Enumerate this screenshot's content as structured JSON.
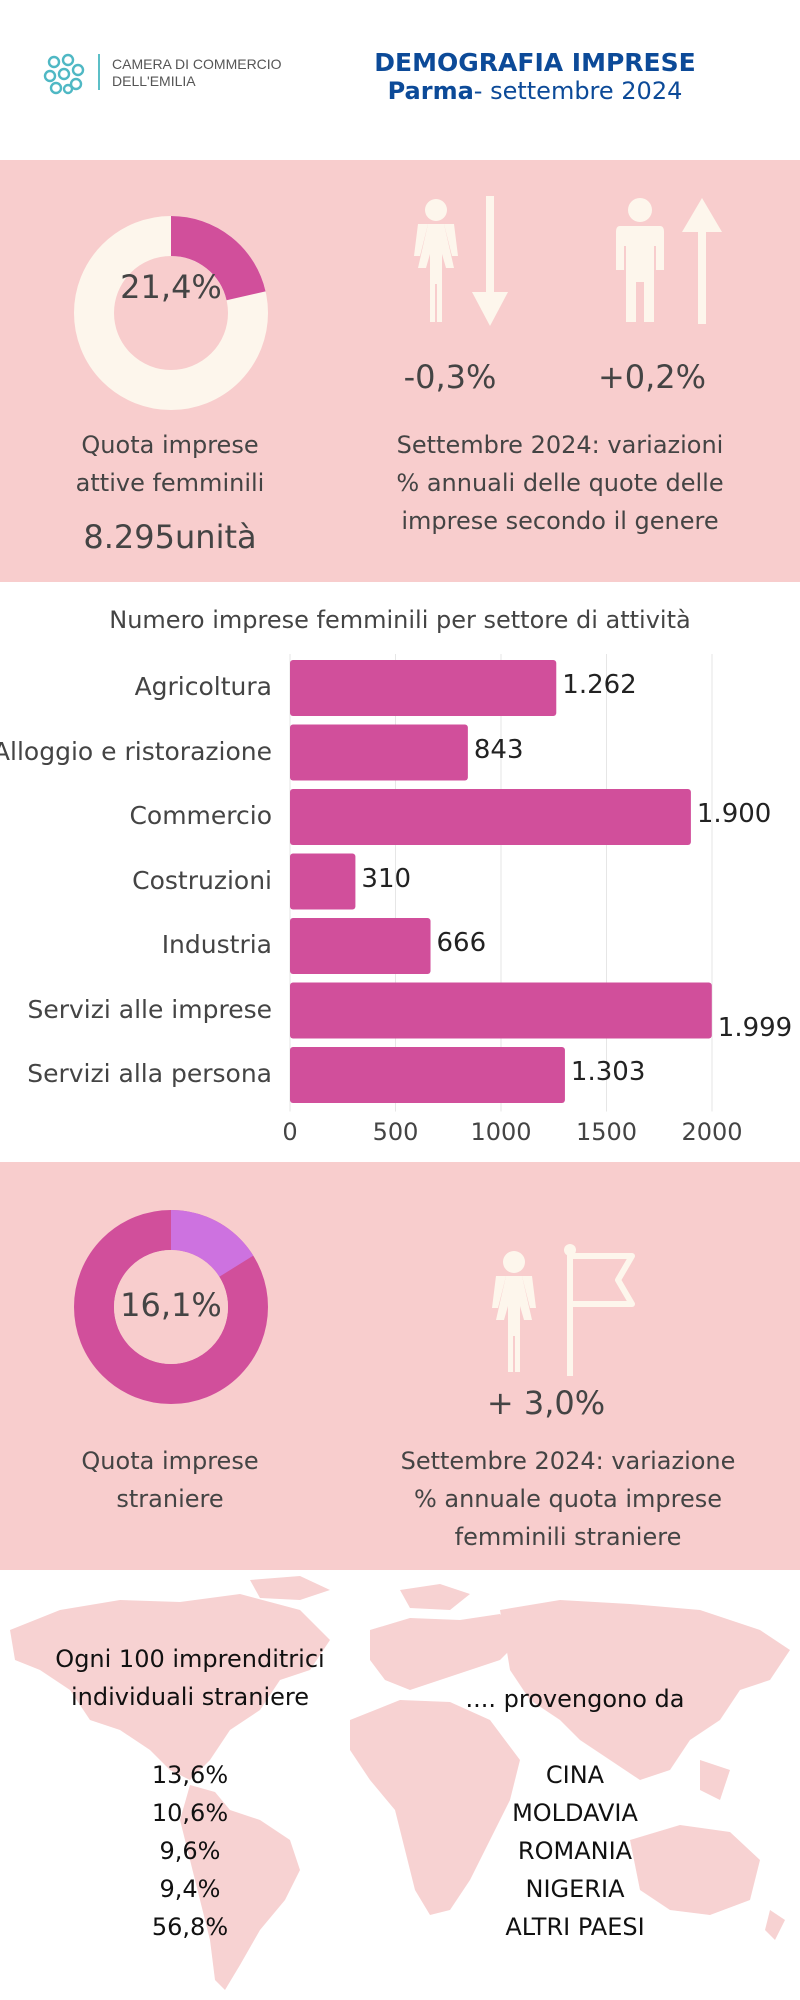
{
  "header": {
    "org_line1": "CAMERA DI COMMERCIO",
    "org_line2": "DELL'EMILIA",
    "title": "DEMOGRAFIA IMPRESE",
    "subtitle_bold": "Parma",
    "subtitle_rest": "- settembre 2024"
  },
  "female_share": {
    "value_label": "21,4%",
    "value": 21.4,
    "caption_line1": "Quota imprese",
    "caption_line2": "attive femminili",
    "units": "8.295unità"
  },
  "gender_variation": {
    "female_label": "-0,3%",
    "male_label": "+0,2%",
    "caption_line1": "Settembre 2024: variazioni",
    "caption_line2": "% annuali delle quote delle",
    "caption_line3": "imprese secondo il genere"
  },
  "chart_data": {
    "type": "bar",
    "orientation": "horizontal",
    "title": "Numero imprese femminili per settore di attività",
    "categories": [
      "Agricoltura",
      "Alloggio e ristorazione",
      "Commercio",
      "Costruzioni",
      "Industria",
      "Servizi alle imprese",
      "Servizi alla persona"
    ],
    "values": [
      1262,
      843,
      1900,
      310,
      666,
      1999,
      1303
    ],
    "value_labels": [
      "1.262",
      "843",
      "1.900",
      "310",
      "666",
      "1.999",
      "1.303"
    ],
    "xlim": [
      0,
      2000
    ],
    "ticks": [
      "0",
      "500",
      "1000",
      "1500",
      "2000"
    ],
    "grid": true,
    "bar_color": "#d14f9b"
  },
  "foreign_share": {
    "value_label": "16,1%",
    "value": 16.1,
    "caption_line1": "Quota imprese",
    "caption_line2": "straniere",
    "variation_label": "+ 3,0%",
    "var_caption_line1": "Settembre 2024: variazione",
    "var_caption_line2": "% annuale quota imprese",
    "var_caption_line3": "femminili straniere"
  },
  "origins": {
    "left_heading_line1": "Ogni 100 imprenditrici",
    "left_heading_line2": "individuali straniere",
    "right_heading": ".... provengono da",
    "percentages": [
      "13,6%",
      "10,6%",
      "9,6%",
      "9,4%",
      "56,8%"
    ],
    "countries": [
      "CINA",
      "MOLDAVIA",
      "ROMANIA",
      "NIGERIA",
      "ALTRI PAESI"
    ]
  },
  "colors": {
    "pink_bg": "#f8cdcd",
    "magenta": "#d14f9b",
    "lilac": "#cd72e0",
    "cream": "#fdf6ec",
    "navy": "#0c4a98",
    "map": "#f7d2d2"
  }
}
